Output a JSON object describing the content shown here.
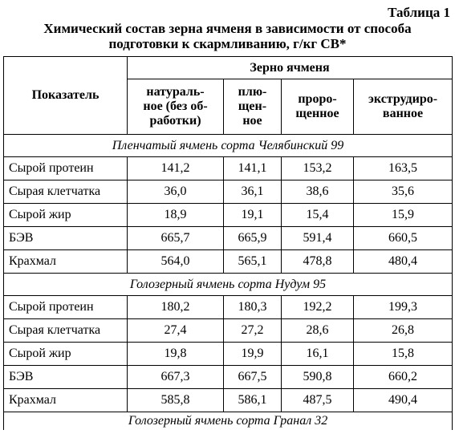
{
  "table_label": "Таблица 1",
  "caption_lines": [
    "Химический состав зерна ячменя в зависимости от способа",
    "подготовки к скармливанию, г/кг СВ*"
  ],
  "header": {
    "indicator": "Показатель",
    "group": "Зерно ячменя",
    "columns": [
      [
        "натураль-",
        "ное (без об-",
        "работки)"
      ],
      [
        "плю-",
        "щен-",
        "ное"
      ],
      [
        "проро-",
        "щенное"
      ],
      [
        "экструдиро-",
        "ванное"
      ]
    ]
  },
  "sections": [
    {
      "title": "Пленчатый ячмень сорта Челябинский 99",
      "rows": [
        {
          "name": "Сырой протеин",
          "values": [
            "141,2",
            "141,1",
            "153,2",
            "163,5"
          ]
        },
        {
          "name": "Сырая клетчатка",
          "values": [
            "36,0",
            "36,1",
            "38,6",
            "35,6"
          ]
        },
        {
          "name": "Сырой жир",
          "values": [
            "18,9",
            "19,1",
            "15,4",
            "15,9"
          ]
        },
        {
          "name": "БЭВ",
          "values": [
            "665,7",
            "665,9",
            "591,4",
            "660,5"
          ]
        },
        {
          "name": "Крахмал",
          "values": [
            "564,0",
            "565,1",
            "478,8",
            "480,4"
          ]
        }
      ]
    },
    {
      "title": "Голозерный ячмень сорта Нудум 95",
      "rows": [
        {
          "name": "Сырой протеин",
          "values": [
            "180,2",
            "180,3",
            "192,2",
            "199,3"
          ]
        },
        {
          "name": "Сырая клетчатка",
          "values": [
            "27,4",
            "27,2",
            "28,6",
            "26,8"
          ]
        },
        {
          "name": "Сырой жир",
          "values": [
            "19,8",
            "19,9",
            "16,1",
            "15,8"
          ]
        },
        {
          "name": "БЭВ",
          "values": [
            "667,3",
            "667,5",
            "590,8",
            "660,2"
          ]
        },
        {
          "name": "Крахмал",
          "values": [
            "585,8",
            "586,1",
            "487,5",
            "490,4"
          ]
        }
      ]
    },
    {
      "title": "Голозерный ячмень сорта Гранал 32",
      "rows": []
    }
  ]
}
